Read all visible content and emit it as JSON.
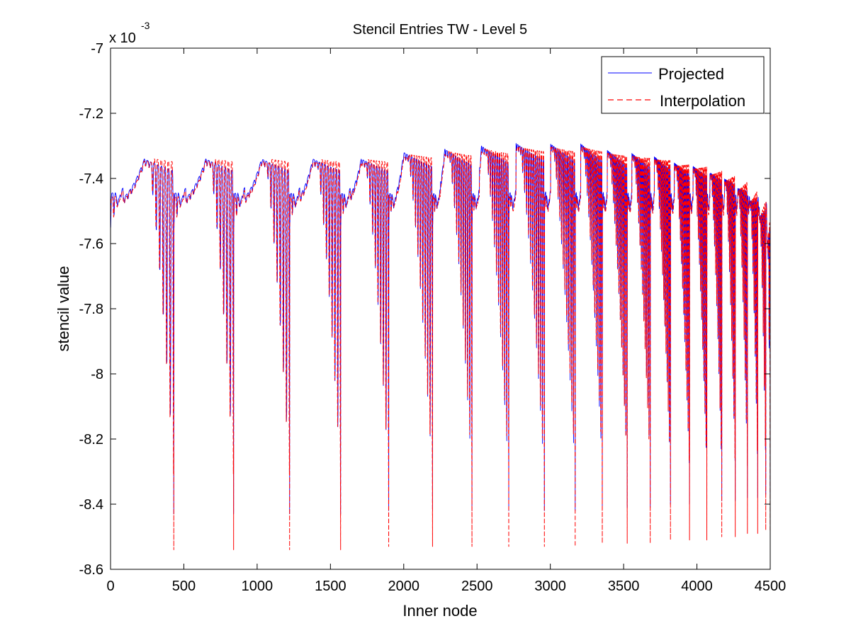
{
  "chart_data": {
    "type": "line",
    "title": "Stencil Entries TW - Level 5",
    "xlabel": "Inner node",
    "ylabel": "stencil value",
    "y_multiplier_label": "x 10",
    "y_multiplier_exponent": "-3",
    "xlim": [
      0,
      4500
    ],
    "ylim": [
      -8.6,
      -7.0
    ],
    "xticks": [
      0,
      500,
      1000,
      1500,
      2000,
      2500,
      3000,
      3500,
      4000,
      4500
    ],
    "xtick_labels": [
      "0",
      "500",
      "1000",
      "1500",
      "2000",
      "2500",
      "3000",
      "3500",
      "4000",
      "4500"
    ],
    "yticks": [
      -8.6,
      -8.4,
      -8.2,
      -8.0,
      -7.8,
      -7.6,
      -7.4,
      -7.2,
      -7.0
    ],
    "ytick_labels": [
      "-8.6",
      "-8.4",
      "-8.2",
      "-8",
      "-7.8",
      "-7.6",
      "-7.4",
      "-7.2",
      "-7"
    ],
    "grid": false,
    "legend_position": "top-right",
    "series": [
      {
        "name": "Projected",
        "color": "#0000ff",
        "style": "solid"
      },
      {
        "name": "Interpolation",
        "color": "#ff0000",
        "style": "dashed"
      }
    ],
    "segment_boundaries": [
      0,
      432,
      840,
      1222,
      1570,
      1898,
      2197,
      2466,
      2717,
      2960,
      3170,
      3355,
      3525,
      3682,
      3820,
      3950,
      4068,
      4170,
      4262,
      4345,
      4415,
      4470,
      4500
    ],
    "segment_peaks_projected": [
      {
        "x": 230,
        "y": -7.34
      },
      {
        "x": 650,
        "y": -7.34
      },
      {
        "x": 1030,
        "y": -7.34
      },
      {
        "x": 1380,
        "y": -7.34
      },
      {
        "x": 1710,
        "y": -7.34
      },
      {
        "x": 2000,
        "y": -7.32
      },
      {
        "x": 2280,
        "y": -7.31
      },
      {
        "x": 2530,
        "y": -7.3
      },
      {
        "x": 2760,
        "y": -7.29
      },
      {
        "x": 2980,
        "y": -7.29
      },
      {
        "x": 3200,
        "y": -7.29
      },
      {
        "x": 3380,
        "y": -7.31
      },
      {
        "x": 3550,
        "y": -7.32
      },
      {
        "x": 3700,
        "y": -7.33
      },
      {
        "x": 3840,
        "y": -7.35
      },
      {
        "x": 3960,
        "y": -7.36
      },
      {
        "x": 4080,
        "y": -7.38
      },
      {
        "x": 4180,
        "y": -7.4
      },
      {
        "x": 4270,
        "y": -7.43
      },
      {
        "x": 4350,
        "y": -7.47
      },
      {
        "x": 4420,
        "y": -7.52
      },
      {
        "x": 4480,
        "y": -7.6
      }
    ],
    "segment_minima": [
      {
        "x": 432,
        "y": -8.54
      },
      {
        "x": 840,
        "y": -8.54
      },
      {
        "x": 1222,
        "y": -8.54
      },
      {
        "x": 1570,
        "y": -8.54
      },
      {
        "x": 1898,
        "y": -8.53
      },
      {
        "x": 2197,
        "y": -8.53
      },
      {
        "x": 2466,
        "y": -8.53
      },
      {
        "x": 2717,
        "y": -8.53
      },
      {
        "x": 2960,
        "y": -8.53
      },
      {
        "x": 3170,
        "y": -8.53
      },
      {
        "x": 3355,
        "y": -8.52
      },
      {
        "x": 3525,
        "y": -8.52
      },
      {
        "x": 3682,
        "y": -8.52
      },
      {
        "x": 3820,
        "y": -8.51
      },
      {
        "x": 3950,
        "y": -8.51
      },
      {
        "x": 4068,
        "y": -8.51
      },
      {
        "x": 4170,
        "y": -8.5
      },
      {
        "x": 4262,
        "y": -8.5
      },
      {
        "x": 4345,
        "y": -8.49
      },
      {
        "x": 4415,
        "y": -8.49
      },
      {
        "x": 4470,
        "y": -8.48
      }
    ]
  }
}
